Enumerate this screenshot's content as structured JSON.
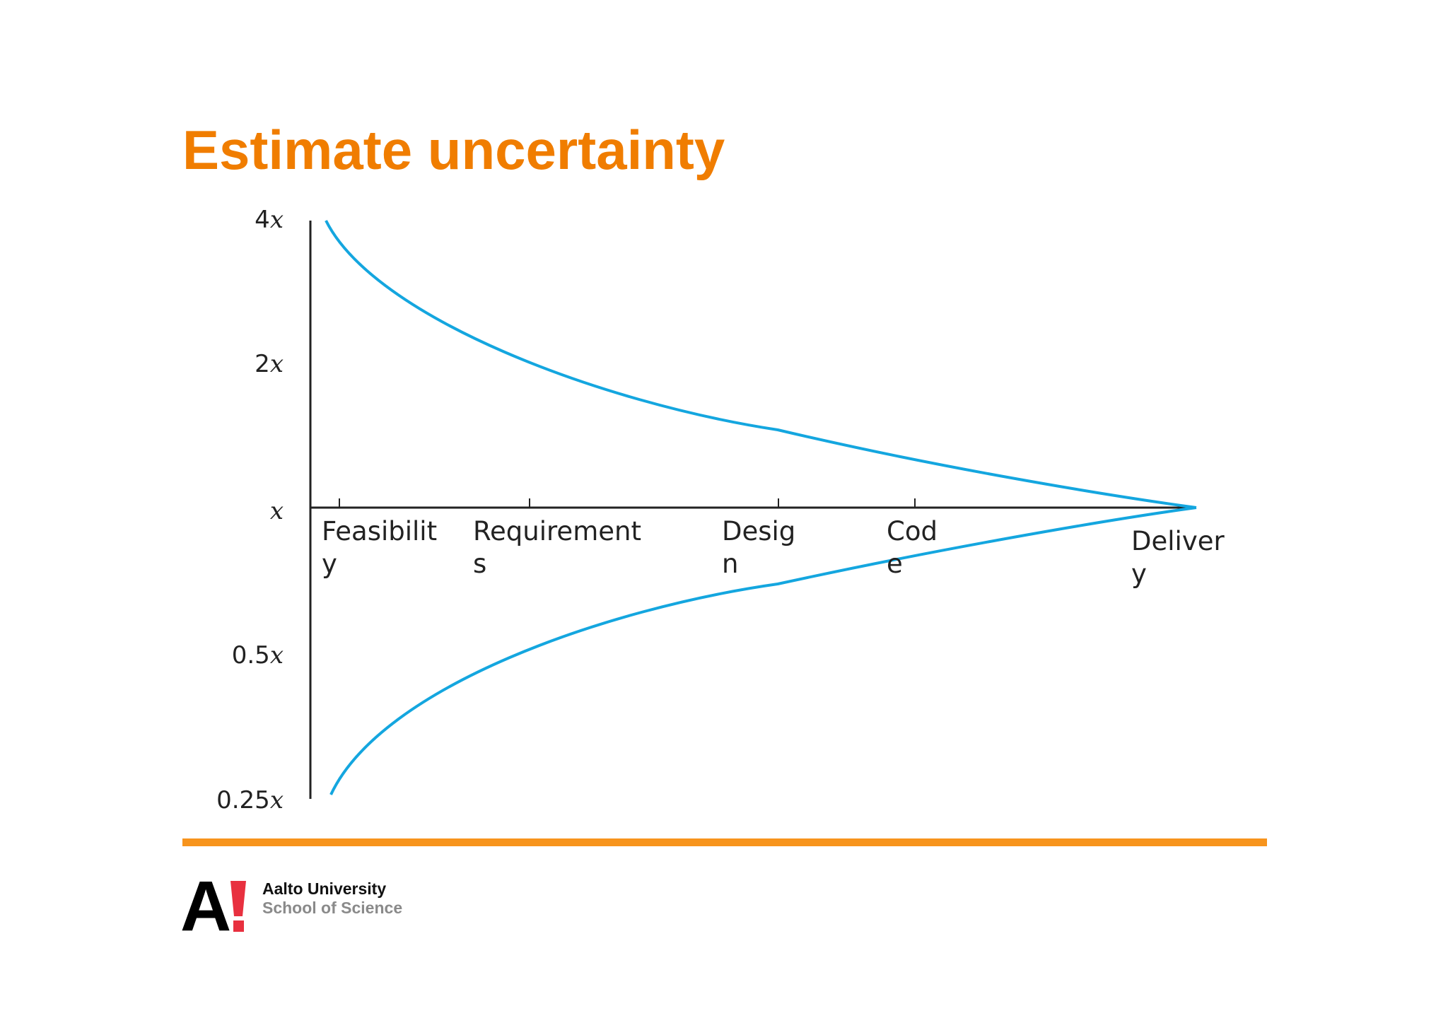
{
  "slide": {
    "title": "Estimate uncertainty",
    "colors": {
      "title": "#f07d00",
      "curve": "#14a6df",
      "rule": "#f7941d",
      "axis": "#222222",
      "logo_black": "#000000",
      "logo_red": "#e8303f"
    }
  },
  "diagram": {
    "y_ticks": [
      {
        "num": "4",
        "var": "x"
      },
      {
        "num": "2",
        "var": "x"
      },
      {
        "num": "",
        "var": "x"
      },
      {
        "num": "0.5",
        "var": "x"
      },
      {
        "num": "0.25",
        "var": "x"
      }
    ],
    "stages": [
      {
        "line1": "Feasibilit",
        "line2": "y"
      },
      {
        "line1": "Requirement",
        "line2": "s"
      },
      {
        "line1": "Desig",
        "line2": "n"
      },
      {
        "line1": "Cod",
        "line2": "e"
      },
      {
        "line1": "Deliver",
        "line2": "y"
      }
    ]
  },
  "footer": {
    "logo_text": "A",
    "university": "Aalto University",
    "school": "School of Science"
  }
}
